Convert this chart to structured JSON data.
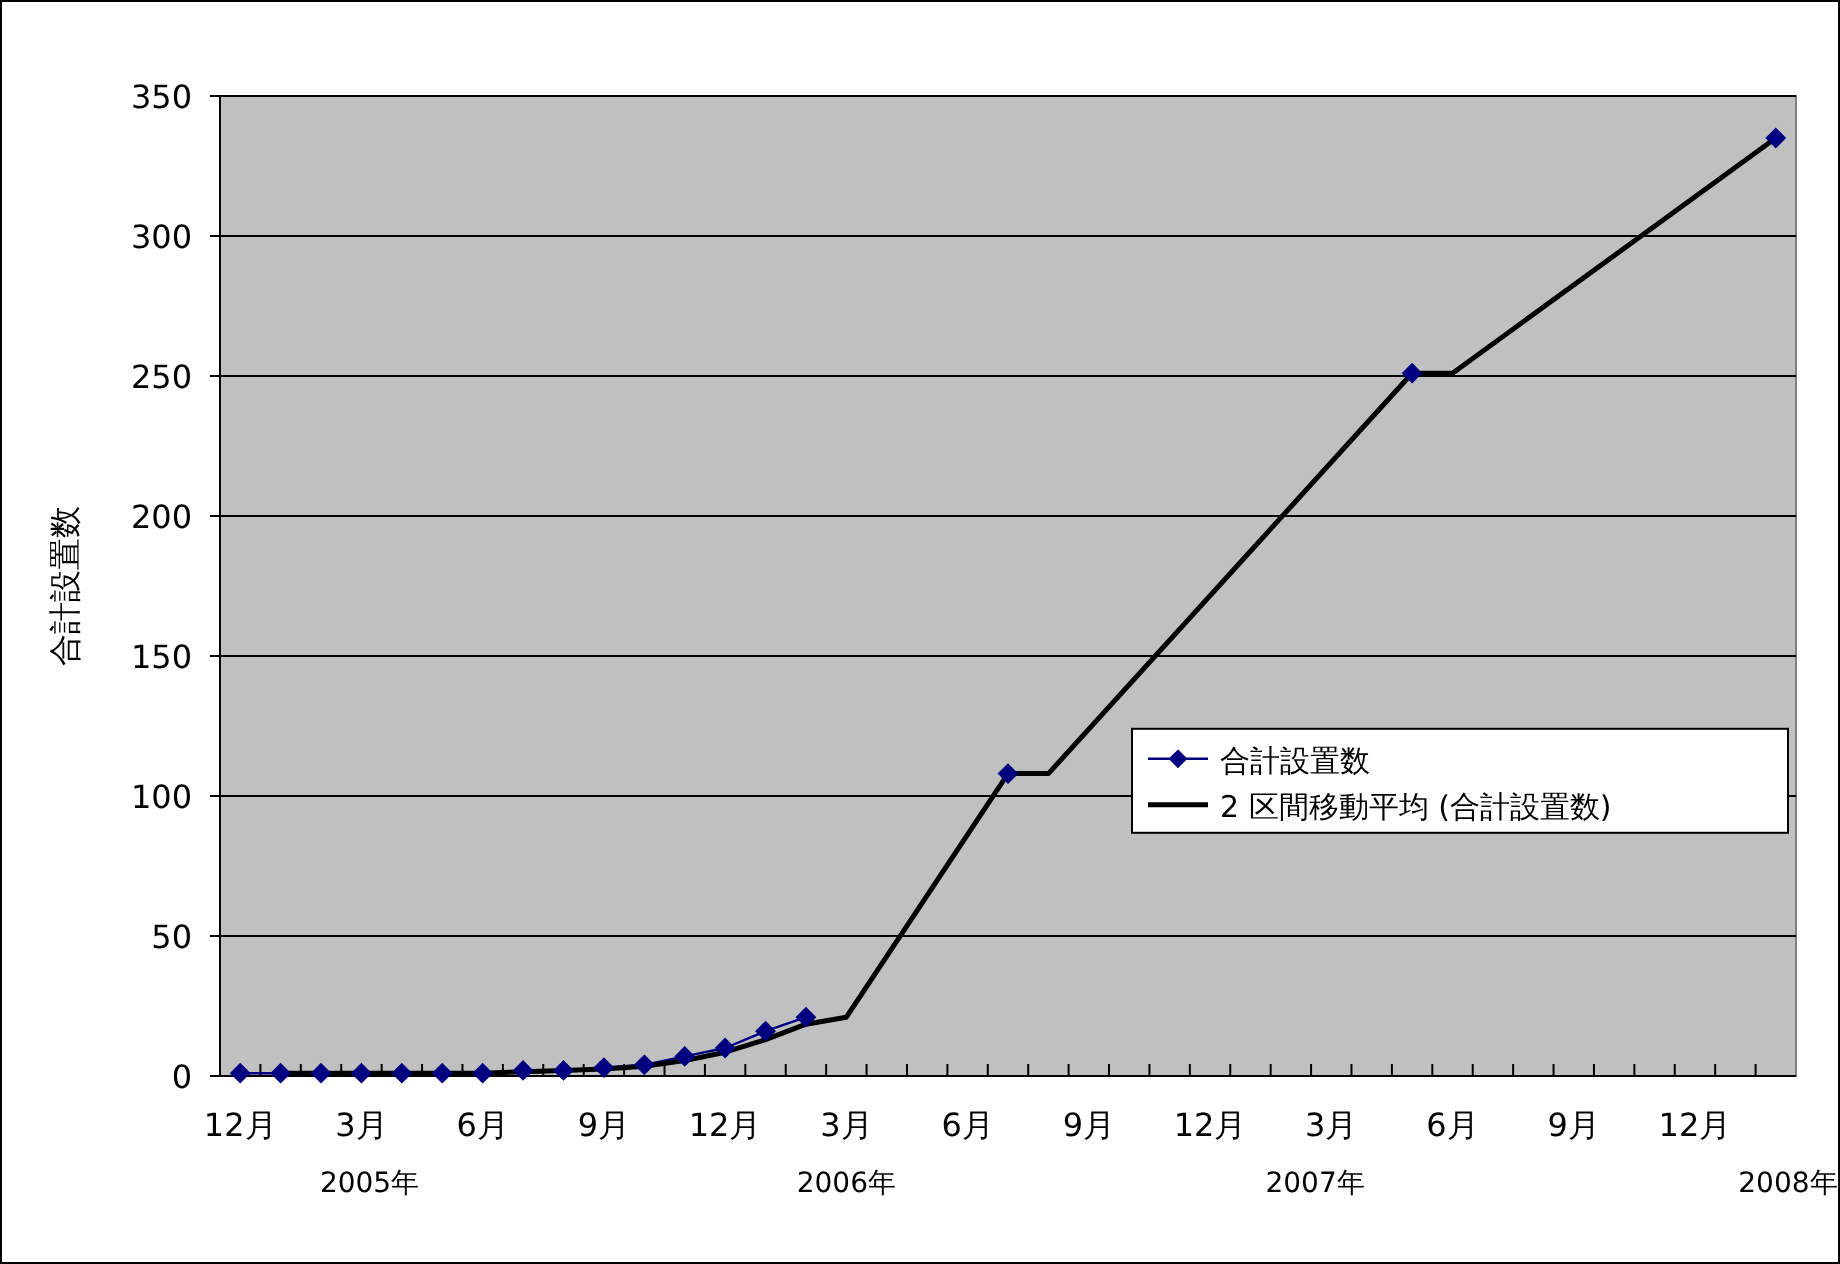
{
  "chart_data": {
    "type": "line",
    "ylabel": "合計設置数",
    "categories": [
      "12月",
      null,
      null,
      "3月",
      null,
      null,
      "6月",
      null,
      null,
      "9月",
      null,
      null,
      "12月",
      null,
      null,
      "3月",
      null,
      null,
      "6月",
      null,
      null,
      "9月",
      null,
      null,
      "12月",
      null,
      null,
      "3月",
      null,
      null,
      "6月",
      null,
      null,
      "9月",
      null,
      null,
      "12月",
      null,
      null
    ],
    "series": [
      {
        "name": "合計設置数",
        "color": "#000080",
        "marker": "diamond",
        "values": [
          1,
          1,
          1,
          1,
          1,
          1,
          1,
          2,
          2,
          3,
          4,
          7,
          10,
          16,
          21,
          null,
          null,
          null,
          null,
          108,
          null,
          null,
          null,
          null,
          null,
          null,
          null,
          null,
          null,
          251,
          null,
          null,
          null,
          null,
          null,
          null,
          null,
          null,
          335
        ]
      },
      {
        "name": "2 区間移動平均 (合計設置数)",
        "color": "#000000",
        "marker": "none",
        "values": [
          null,
          1,
          1,
          1,
          1,
          1,
          1,
          1.5,
          2,
          2.5,
          3.5,
          5.5,
          8.5,
          13,
          18.5,
          21,
          null,
          null,
          null,
          108,
          108,
          null,
          null,
          null,
          null,
          null,
          null,
          null,
          null,
          251,
          251,
          null,
          null,
          null,
          null,
          null,
          null,
          null,
          335
        ]
      }
    ],
    "ylim": [
      0,
      350
    ],
    "yticks": [
      0,
      50,
      100,
      150,
      200,
      250,
      300,
      350
    ],
    "annotations": [
      "2005年",
      "2006年",
      "2007年",
      "2008年"
    ],
    "grid": "y",
    "legend": "right"
  }
}
